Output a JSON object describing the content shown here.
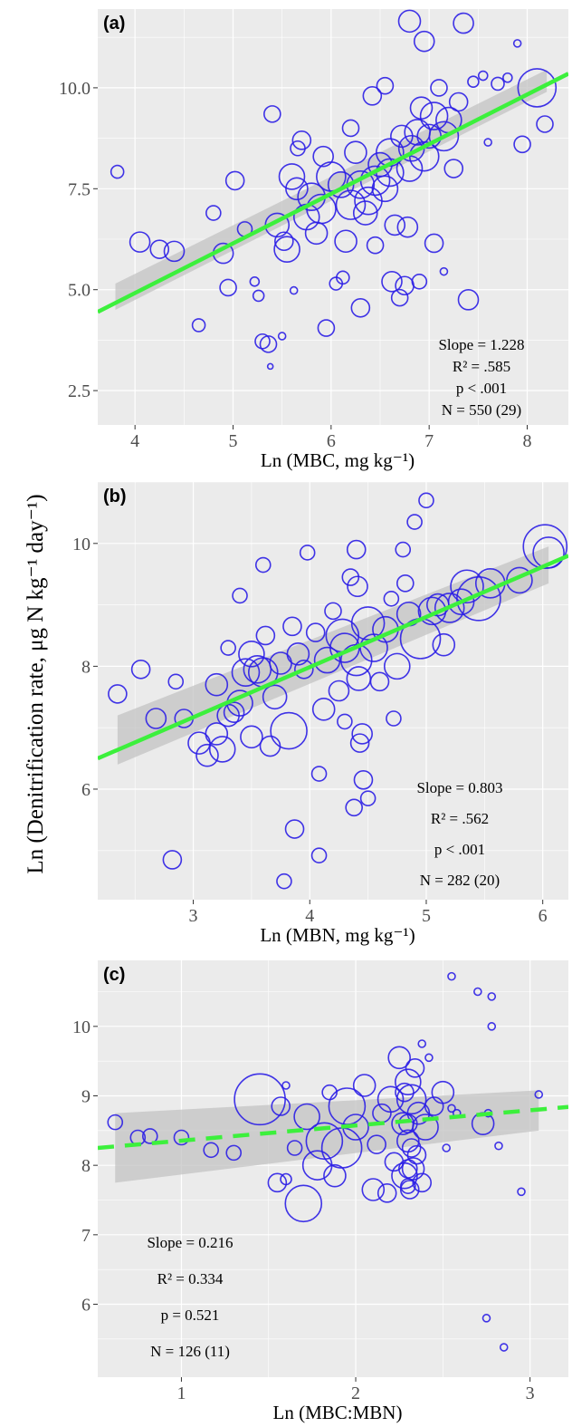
{
  "ylabel": "Ln (Denitrification rate, μg N kg⁻¹ day⁻¹)",
  "colors": {
    "panel_bg": "#ebebeb",
    "grid": "#ffffff",
    "points": "#2b1ee6",
    "fit": "#3cf03c",
    "ci": "#c3c3c3",
    "text": "#333333"
  },
  "chart_data": [
    {
      "panel": "(a)",
      "type": "scatter",
      "xlabel": "Ln (MBC, mg kg⁻¹)",
      "xlim": [
        3.62,
        8.42
      ],
      "ylim": [
        1.65,
        11.95
      ],
      "xticks": [
        "4",
        "5",
        "6",
        "7",
        "8"
      ],
      "yticks": [
        "2.5",
        "5.0",
        "7.5",
        "10.0"
      ],
      "xtick_values": [
        4,
        5,
        6,
        7,
        8
      ],
      "ytick_values": [
        2.5,
        5.0,
        7.5,
        10.0
      ],
      "fit": {
        "slope": 1.228,
        "x1": 3.62,
        "y1": 4.45,
        "x2": 8.42,
        "y2": 10.35,
        "style": "solid"
      },
      "ci_band": {
        "x1": 3.8,
        "x2": 8.2,
        "lower_start": 4.5,
        "upper_start": 5.15,
        "lower_end": 9.9,
        "upper_end": 10.45
      },
      "stats_lines": [
        "Slope = 1.228",
        "R² = .585",
        "p < .001",
        "N = 550 (29)"
      ],
      "points": [
        [
          3.82,
          7.92,
          7
        ],
        [
          4.05,
          6.18,
          11
        ],
        [
          4.25,
          6.0,
          10
        ],
        [
          4.4,
          5.95,
          11
        ],
        [
          4.65,
          4.12,
          7
        ],
        [
          4.8,
          6.9,
          8
        ],
        [
          4.9,
          5.9,
          11
        ],
        [
          4.95,
          5.05,
          9
        ],
        [
          5.02,
          7.7,
          10
        ],
        [
          5.12,
          6.5,
          8
        ],
        [
          5.22,
          5.2,
          5
        ],
        [
          5.26,
          4.85,
          6
        ],
        [
          5.3,
          3.72,
          8
        ],
        [
          5.36,
          3.65,
          9
        ],
        [
          5.38,
          3.1,
          3
        ],
        [
          5.4,
          9.35,
          9
        ],
        [
          5.5,
          3.85,
          4
        ],
        [
          5.52,
          6.2,
          10
        ],
        [
          5.6,
          7.8,
          14
        ],
        [
          5.62,
          4.98,
          4
        ],
        [
          5.66,
          8.5,
          8
        ],
        [
          5.7,
          8.7,
          10
        ],
        [
          5.8,
          7.3,
          15
        ],
        [
          5.85,
          6.4,
          12
        ],
        [
          5.92,
          8.3,
          11
        ],
        [
          5.95,
          4.05,
          9
        ],
        [
          6.05,
          5.15,
          7
        ],
        [
          6.1,
          7.6,
          14
        ],
        [
          6.12,
          5.3,
          7
        ],
        [
          6.15,
          6.2,
          12
        ],
        [
          6.2,
          9.0,
          9
        ],
        [
          6.25,
          8.4,
          12
        ],
        [
          6.3,
          4.55,
          10
        ],
        [
          6.35,
          6.9,
          13
        ],
        [
          6.38,
          7.2,
          15
        ],
        [
          6.42,
          9.8,
          10
        ],
        [
          6.45,
          6.1,
          9
        ],
        [
          6.5,
          8.1,
          13
        ],
        [
          6.55,
          10.05,
          9
        ],
        [
          6.55,
          7.5,
          14
        ],
        [
          6.6,
          7.9,
          15
        ],
        [
          6.62,
          5.2,
          11
        ],
        [
          6.65,
          6.6,
          11
        ],
        [
          6.7,
          4.8,
          9
        ],
        [
          6.72,
          8.8,
          12
        ],
        [
          6.75,
          5.1,
          10
        ],
        [
          6.78,
          6.55,
          11
        ],
        [
          6.8,
          11.65,
          12
        ],
        [
          6.82,
          8.5,
          14
        ],
        [
          6.88,
          8.9,
          14
        ],
        [
          6.9,
          5.2,
          8
        ],
        [
          6.92,
          9.5,
          12
        ],
        [
          6.95,
          11.15,
          11
        ],
        [
          7.0,
          8.8,
          13
        ],
        [
          7.05,
          9.3,
          15
        ],
        [
          7.05,
          6.15,
          10
        ],
        [
          7.1,
          10.0,
          9
        ],
        [
          7.15,
          5.45,
          4
        ],
        [
          7.2,
          9.2,
          14
        ],
        [
          7.25,
          8.0,
          10
        ],
        [
          7.3,
          9.65,
          10
        ],
        [
          7.35,
          11.6,
          11
        ],
        [
          7.4,
          4.75,
          11
        ],
        [
          7.45,
          10.15,
          6
        ],
        [
          7.55,
          10.3,
          5
        ],
        [
          7.6,
          8.65,
          4
        ],
        [
          7.7,
          10.1,
          7
        ],
        [
          7.8,
          10.25,
          5
        ],
        [
          7.9,
          11.1,
          4
        ],
        [
          7.95,
          8.6,
          9
        ],
        [
          8.1,
          10.0,
          21
        ],
        [
          8.18,
          9.1,
          9
        ],
        [
          5.9,
          7.0,
          16
        ],
        [
          6.0,
          7.8,
          16
        ],
        [
          6.3,
          7.6,
          15
        ],
        [
          6.6,
          8.4,
          15
        ],
        [
          5.75,
          6.8,
          14
        ],
        [
          6.95,
          8.3,
          16
        ],
        [
          7.15,
          8.8,
          16
        ],
        [
          5.55,
          6.0,
          14
        ],
        [
          6.2,
          7.1,
          16
        ],
        [
          6.45,
          7.7,
          16
        ],
        [
          6.8,
          8.0,
          14
        ],
        [
          5.65,
          7.5,
          12
        ],
        [
          5.45,
          6.6,
          13
        ]
      ]
    },
    {
      "panel": "(b)",
      "type": "scatter",
      "xlabel": "Ln (MBN, mg kg⁻¹)",
      "xlim": [
        2.18,
        6.22
      ],
      "ylim": [
        4.2,
        11.0
      ],
      "xticks": [
        "3",
        "4",
        "5",
        "6"
      ],
      "yticks": [
        "6",
        "8",
        "10"
      ],
      "xtick_values": [
        3,
        4,
        5,
        6
      ],
      "ytick_values": [
        6,
        8,
        10
      ],
      "fit": {
        "slope": 0.803,
        "x1": 2.18,
        "y1": 6.5,
        "x2": 6.22,
        "y2": 9.8,
        "style": "solid"
      },
      "ci_band": {
        "x1": 2.35,
        "x2": 6.05,
        "lower_start": 6.4,
        "upper_start": 7.2,
        "lower_end": 9.35,
        "upper_end": 9.95
      },
      "stats_lines": [
        "Slope = 0.803",
        "R² = .562",
        "p < .001",
        "N = 282 (20)"
      ],
      "points": [
        [
          2.35,
          7.55,
          10
        ],
        [
          2.55,
          7.95,
          10
        ],
        [
          2.68,
          7.15,
          11
        ],
        [
          2.82,
          4.85,
          10
        ],
        [
          2.85,
          7.75,
          8
        ],
        [
          2.92,
          7.15,
          10
        ],
        [
          3.05,
          6.75,
          12
        ],
        [
          3.12,
          6.55,
          12
        ],
        [
          3.2,
          7.7,
          12
        ],
        [
          3.25,
          6.65,
          14
        ],
        [
          3.3,
          8.3,
          8
        ],
        [
          3.35,
          7.25,
          11
        ],
        [
          3.4,
          9.15,
          8
        ],
        [
          3.45,
          7.9,
          15
        ],
        [
          3.5,
          6.85,
          12
        ],
        [
          3.55,
          7.95,
          15
        ],
        [
          3.6,
          9.65,
          8
        ],
        [
          3.62,
          8.5,
          10
        ],
        [
          3.66,
          6.7,
          11
        ],
        [
          3.7,
          7.5,
          13
        ],
        [
          3.75,
          8.05,
          12
        ],
        [
          3.78,
          4.5,
          8
        ],
        [
          3.82,
          6.95,
          20
        ],
        [
          3.85,
          8.65,
          10
        ],
        [
          3.87,
          5.35,
          10
        ],
        [
          3.95,
          7.95,
          10
        ],
        [
          3.98,
          9.85,
          8
        ],
        [
          4.05,
          8.55,
          10
        ],
        [
          4.08,
          4.92,
          8
        ],
        [
          4.08,
          6.25,
          8
        ],
        [
          4.12,
          7.3,
          12
        ],
        [
          4.15,
          8.1,
          14
        ],
        [
          4.2,
          8.9,
          9
        ],
        [
          4.25,
          7.6,
          11
        ],
        [
          4.28,
          8.5,
          18
        ],
        [
          4.3,
          7.1,
          8
        ],
        [
          4.35,
          9.45,
          9
        ],
        [
          4.38,
          5.7,
          9
        ],
        [
          4.4,
          8.1,
          17
        ],
        [
          4.4,
          9.9,
          10
        ],
        [
          4.41,
          9.3,
          11
        ],
        [
          4.42,
          7.8,
          13
        ],
        [
          4.43,
          6.75,
          10
        ],
        [
          4.45,
          6.9,
          11
        ],
        [
          4.46,
          6.15,
          10
        ],
        [
          4.5,
          5.85,
          8
        ],
        [
          4.55,
          8.3,
          15
        ],
        [
          4.6,
          7.75,
          10
        ],
        [
          4.65,
          8.6,
          14
        ],
        [
          4.7,
          9.1,
          8
        ],
        [
          4.72,
          7.15,
          8
        ],
        [
          4.75,
          8.0,
          14
        ],
        [
          4.8,
          9.9,
          8
        ],
        [
          4.82,
          9.35,
          9
        ],
        [
          4.85,
          8.85,
          13
        ],
        [
          4.9,
          10.35,
          8
        ],
        [
          4.95,
          8.45,
          22
        ],
        [
          5.0,
          10.7,
          8
        ],
        [
          5.05,
          8.9,
          15
        ],
        [
          5.1,
          9.0,
          12
        ],
        [
          5.15,
          8.35,
          12
        ],
        [
          5.2,
          8.95,
          16
        ],
        [
          5.3,
          9.05,
          14
        ],
        [
          5.35,
          9.3,
          18
        ],
        [
          5.45,
          9.1,
          24
        ],
        [
          5.55,
          9.35,
          16
        ],
        [
          5.8,
          9.4,
          14
        ],
        [
          6.02,
          9.95,
          24
        ],
        [
          6.05,
          9.85,
          17
        ],
        [
          3.4,
          7.4,
          14
        ],
        [
          3.6,
          7.9,
          16
        ],
        [
          3.3,
          7.2,
          12
        ],
        [
          3.5,
          8.2,
          14
        ],
        [
          4.3,
          8.3,
          16
        ],
        [
          4.5,
          8.7,
          18
        ],
        [
          3.2,
          6.9,
          12
        ],
        [
          3.9,
          8.2,
          12
        ]
      ]
    },
    {
      "panel": "(c)",
      "type": "scatter",
      "xlabel": "Ln (MBC:MBN)",
      "xlim": [
        0.52,
        3.22
      ],
      "ylim": [
        4.95,
        10.95
      ],
      "xticks": [
        "1",
        "2",
        "3"
      ],
      "yticks": [
        "6",
        "7",
        "8",
        "9",
        "10"
      ],
      "xtick_values": [
        1,
        2,
        3
      ],
      "ytick_values": [
        6,
        7,
        8,
        9,
        10
      ],
      "fit": {
        "slope": 0.216,
        "x1": 0.52,
        "y1": 8.25,
        "x2": 3.22,
        "y2": 8.84,
        "style": "dashed"
      },
      "ci_band": {
        "x1": 0.62,
        "x2": 3.05,
        "lower_start": 7.75,
        "upper_start": 8.75,
        "lower_end": 8.5,
        "upper_end": 9.08
      },
      "stats_lines": [
        "Slope = 0.216",
        "R² = 0.334",
        "p = 0.521",
        "N = 126 (11)"
      ],
      "points": [
        [
          0.62,
          8.62,
          8
        ],
        [
          0.75,
          8.4,
          8
        ],
        [
          0.82,
          8.42,
          8
        ],
        [
          1.0,
          8.4,
          8
        ],
        [
          1.17,
          8.22,
          8
        ],
        [
          1.3,
          8.18,
          8
        ],
        [
          1.45,
          8.95,
          28
        ],
        [
          1.55,
          7.75,
          10
        ],
        [
          1.57,
          8.85,
          10
        ],
        [
          1.6,
          7.8,
          6
        ],
        [
          1.6,
          9.15,
          4
        ],
        [
          1.65,
          8.25,
          8
        ],
        [
          1.7,
          7.45,
          20
        ],
        [
          1.72,
          8.7,
          14
        ],
        [
          1.78,
          8.0,
          16
        ],
        [
          1.82,
          8.35,
          20
        ],
        [
          1.85,
          9.05,
          8
        ],
        [
          1.88,
          7.85,
          12
        ],
        [
          1.92,
          8.25,
          22
        ],
        [
          1.95,
          8.85,
          20
        ],
        [
          2.0,
          8.55,
          14
        ],
        [
          2.05,
          9.15,
          12
        ],
        [
          2.1,
          7.65,
          12
        ],
        [
          2.12,
          8.3,
          10
        ],
        [
          2.15,
          8.75,
          10
        ],
        [
          2.18,
          7.6,
          10
        ],
        [
          2.2,
          8.95,
          14
        ],
        [
          2.22,
          8.05,
          10
        ],
        [
          2.25,
          9.55,
          12
        ],
        [
          2.27,
          8.6,
          12
        ],
        [
          2.28,
          7.85,
          14
        ],
        [
          2.3,
          9.2,
          14
        ],
        [
          2.3,
          8.35,
          12
        ],
        [
          2.31,
          7.65,
          10
        ],
        [
          2.32,
          8.95,
          16
        ],
        [
          2.33,
          7.95,
          12
        ],
        [
          2.34,
          9.4,
          10
        ],
        [
          2.35,
          8.15,
          10
        ],
        [
          2.36,
          8.75,
          12
        ],
        [
          2.38,
          7.75,
          10
        ],
        [
          2.38,
          9.75,
          4
        ],
        [
          2.4,
          8.55,
          14
        ],
        [
          2.42,
          9.55,
          4
        ],
        [
          2.45,
          8.85,
          10
        ],
        [
          2.5,
          9.05,
          12
        ],
        [
          2.52,
          8.25,
          4
        ],
        [
          2.55,
          10.72,
          4
        ],
        [
          2.55,
          8.82,
          4
        ],
        [
          2.58,
          8.75,
          4
        ],
        [
          2.7,
          10.5,
          4
        ],
        [
          2.73,
          8.6,
          12
        ],
        [
          2.75,
          5.8,
          4
        ],
        [
          2.78,
          10.43,
          4
        ],
        [
          2.78,
          10.0,
          4
        ],
        [
          2.82,
          8.28,
          4
        ],
        [
          2.85,
          5.38,
          4
        ],
        [
          2.95,
          7.62,
          4
        ],
        [
          3.05,
          9.02,
          4
        ],
        [
          2.76,
          8.75,
          4
        ],
        [
          2.3,
          8.6,
          10
        ],
        [
          2.28,
          9.05,
          10
        ],
        [
          2.32,
          8.25,
          10
        ],
        [
          2.3,
          7.95,
          10
        ],
        [
          2.3,
          7.7,
          8
        ]
      ]
    }
  ]
}
